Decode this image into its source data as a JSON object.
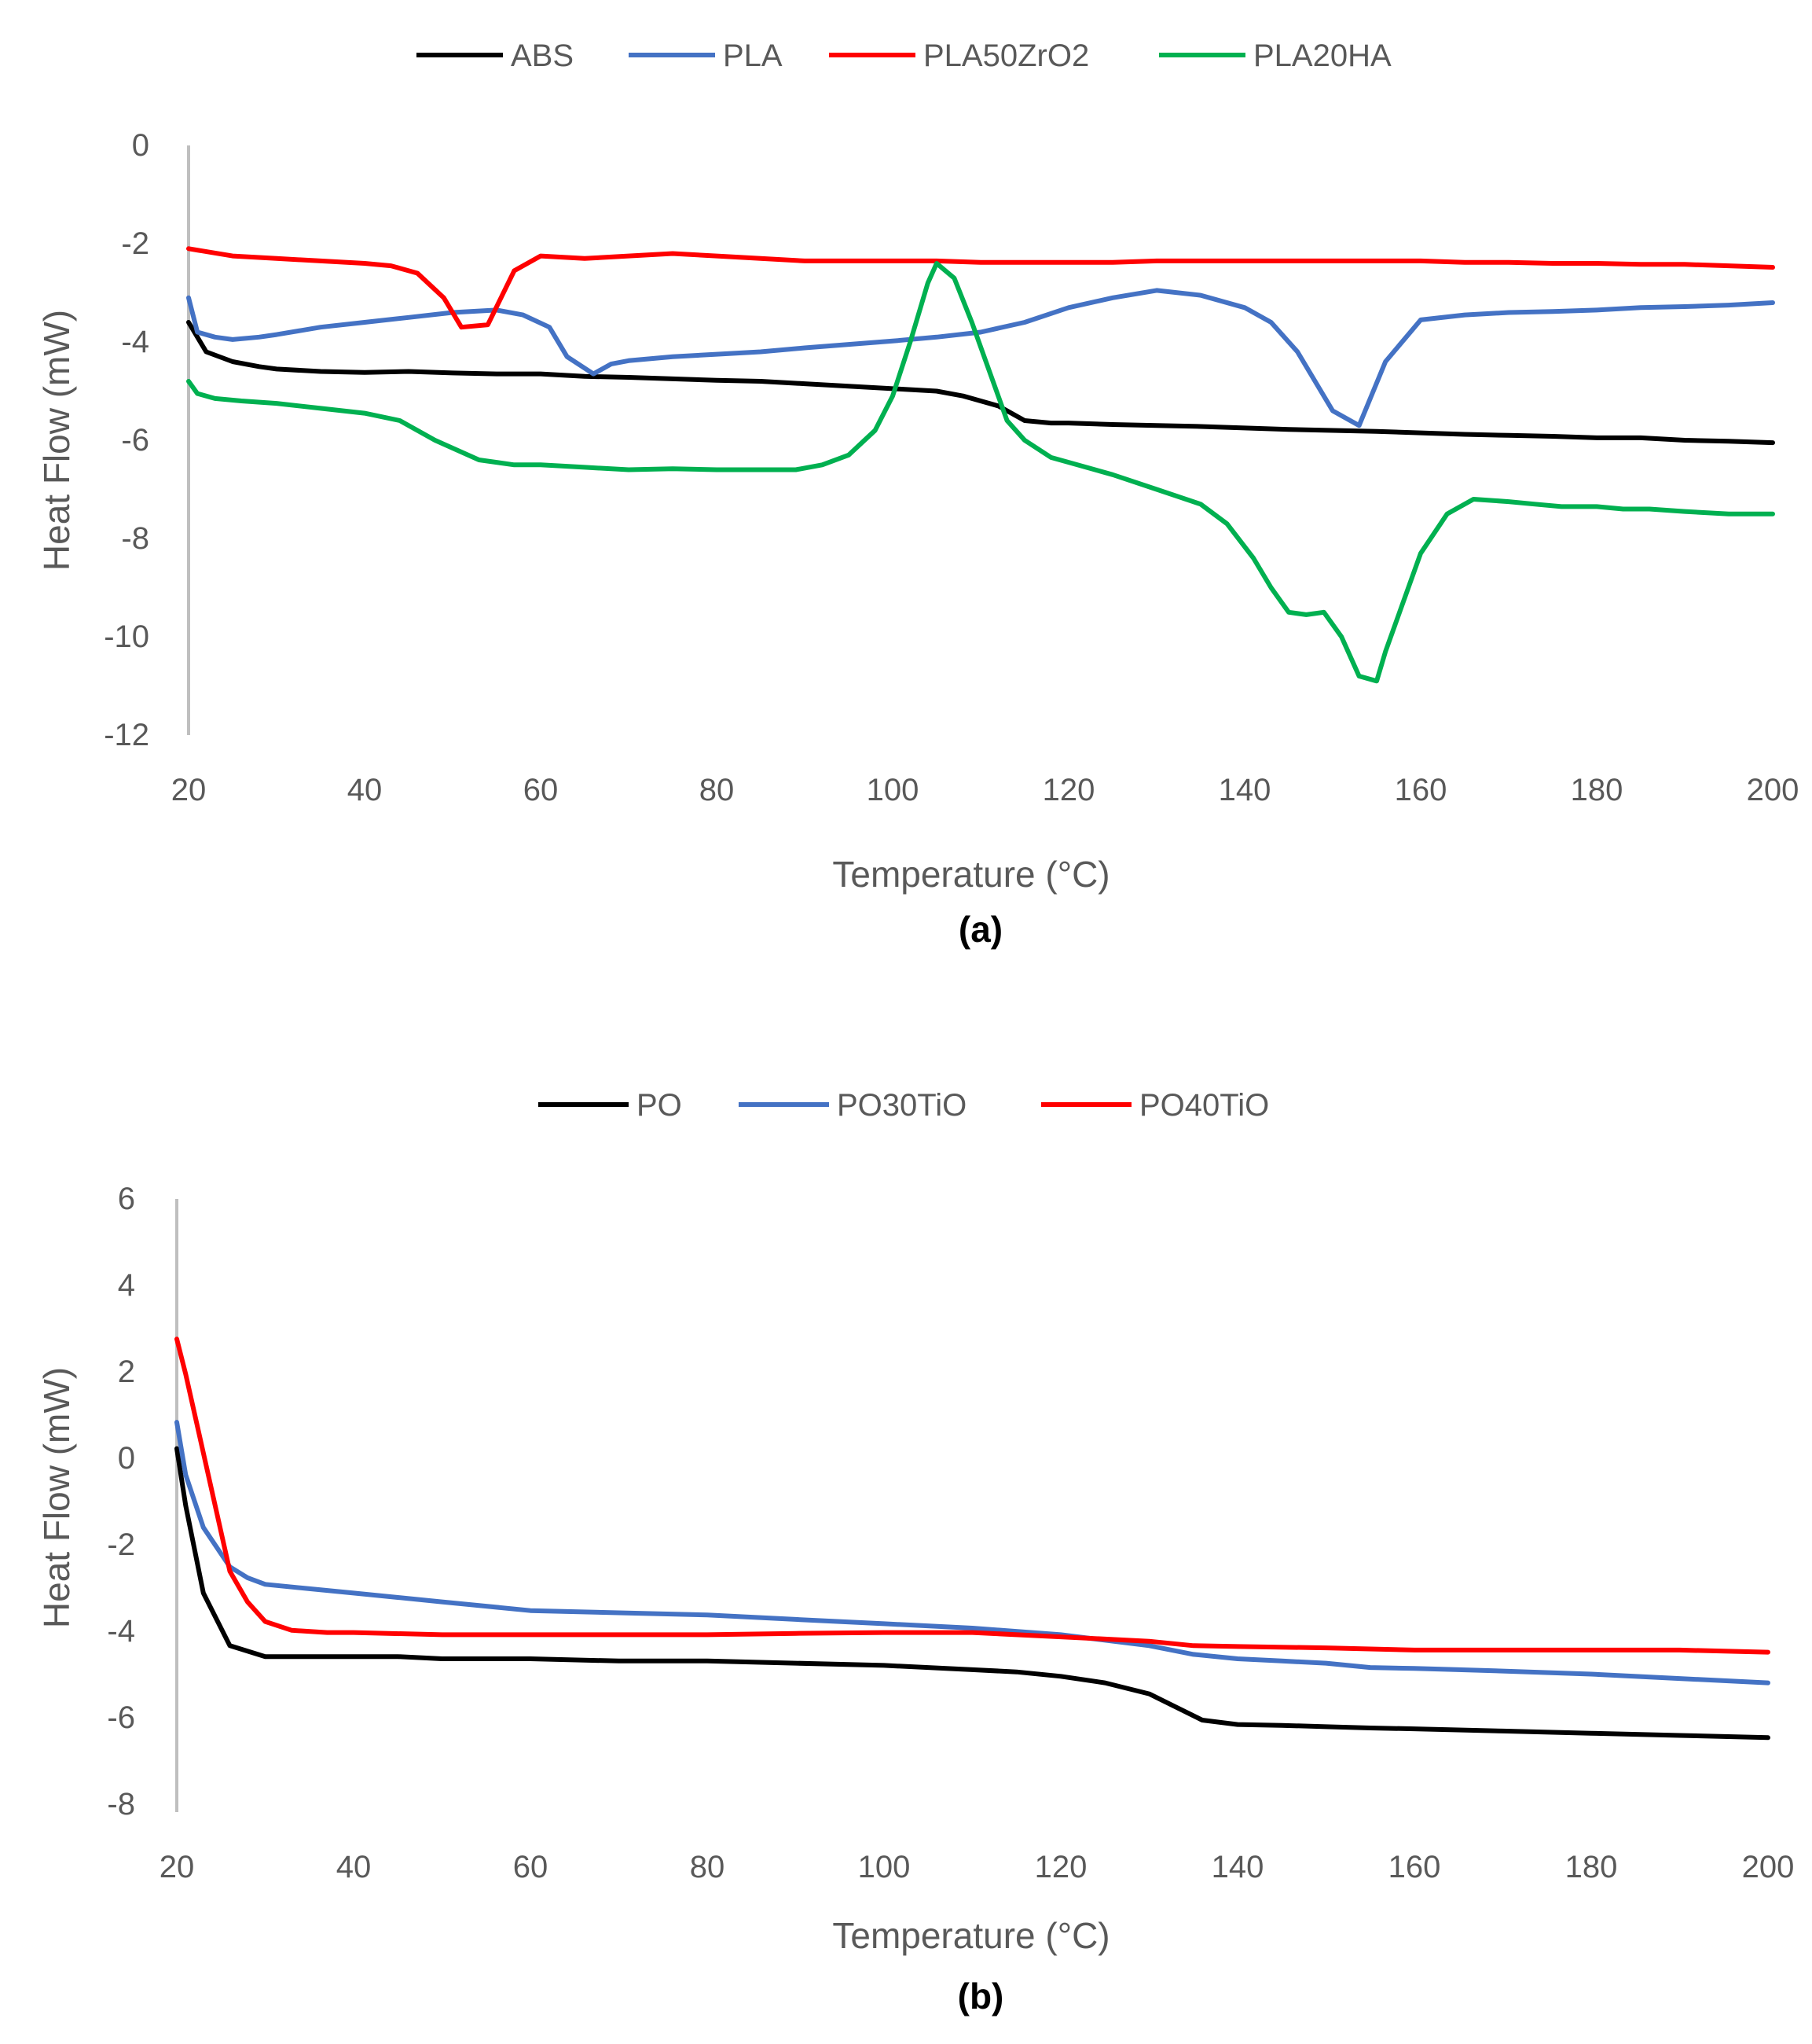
{
  "chart_data": [
    {
      "type": "line",
      "panel_label": "(a)",
      "title": "",
      "xlabel": "Temperature (°C)",
      "ylabel": "Heat Flow (mW)",
      "xlim": [
        20,
        200
      ],
      "ylim": [
        -12,
        0
      ],
      "xticks": [
        20,
        40,
        60,
        80,
        100,
        120,
        140,
        160,
        180,
        200
      ],
      "yticks": [
        0,
        -2,
        -4,
        -6,
        -8,
        -10,
        -12
      ],
      "legend_position": "top-center",
      "grid": false,
      "series": [
        {
          "name": "ABS",
          "color": "#000000",
          "x": [
            20,
            22,
            25,
            28,
            30,
            35,
            40,
            45,
            50,
            55,
            60,
            65,
            70,
            75,
            80,
            85,
            90,
            95,
            100,
            105,
            108,
            112,
            115,
            118,
            120,
            125,
            130,
            135,
            140,
            145,
            150,
            155,
            160,
            165,
            170,
            175,
            180,
            185,
            190,
            195,
            200
          ],
          "y": [
            -3.6,
            -4.2,
            -4.4,
            -4.5,
            -4.55,
            -4.6,
            -4.62,
            -4.6,
            -4.63,
            -4.65,
            -4.65,
            -4.7,
            -4.72,
            -4.75,
            -4.78,
            -4.8,
            -4.85,
            -4.9,
            -4.95,
            -5.0,
            -5.1,
            -5.3,
            -5.6,
            -5.65,
            -5.65,
            -5.68,
            -5.7,
            -5.72,
            -5.75,
            -5.78,
            -5.8,
            -5.82,
            -5.85,
            -5.88,
            -5.9,
            -5.92,
            -5.95,
            -5.95,
            -6.0,
            -6.02,
            -6.05
          ]
        },
        {
          "name": "PLA",
          "color": "#4472C4",
          "x": [
            20,
            21,
            23,
            25,
            28,
            30,
            35,
            40,
            45,
            50,
            55,
            58,
            61,
            63,
            66,
            68,
            70,
            75,
            80,
            85,
            90,
            95,
            100,
            105,
            110,
            115,
            120,
            125,
            130,
            135,
            140,
            143,
            146,
            150,
            153,
            156,
            160,
            165,
            170,
            175,
            180,
            185,
            190,
            195,
            200
          ],
          "y": [
            -3.1,
            -3.8,
            -3.9,
            -3.95,
            -3.9,
            -3.85,
            -3.7,
            -3.6,
            -3.5,
            -3.4,
            -3.35,
            -3.45,
            -3.7,
            -4.3,
            -4.65,
            -4.45,
            -4.38,
            -4.3,
            -4.25,
            -4.2,
            -4.12,
            -4.05,
            -3.98,
            -3.9,
            -3.8,
            -3.6,
            -3.3,
            -3.1,
            -2.95,
            -3.05,
            -3.3,
            -3.6,
            -4.2,
            -5.4,
            -5.7,
            -4.4,
            -3.55,
            -3.45,
            -3.4,
            -3.38,
            -3.35,
            -3.3,
            -3.28,
            -3.25,
            -3.2
          ]
        },
        {
          "name": "PLA50ZrO2",
          "color": "#FF0000",
          "x": [
            20,
            25,
            30,
            35,
            40,
            43,
            46,
            49,
            51,
            54,
            57,
            60,
            65,
            70,
            75,
            80,
            85,
            90,
            95,
            100,
            105,
            110,
            115,
            120,
            125,
            130,
            135,
            140,
            145,
            150,
            155,
            160,
            165,
            170,
            175,
            180,
            185,
            190,
            195,
            200
          ],
          "y": [
            -2.1,
            -2.25,
            -2.3,
            -2.35,
            -2.4,
            -2.45,
            -2.6,
            -3.1,
            -3.7,
            -3.65,
            -2.55,
            -2.25,
            -2.3,
            -2.25,
            -2.2,
            -2.25,
            -2.3,
            -2.35,
            -2.35,
            -2.35,
            -2.35,
            -2.38,
            -2.38,
            -2.38,
            -2.38,
            -2.35,
            -2.35,
            -2.35,
            -2.35,
            -2.35,
            -2.35,
            -2.35,
            -2.38,
            -2.38,
            -2.4,
            -2.4,
            -2.42,
            -2.42,
            -2.45,
            -2.48
          ]
        },
        {
          "name": "PLA20HA",
          "color": "#00B050",
          "x": [
            20,
            21,
            23,
            26,
            30,
            35,
            40,
            44,
            48,
            53,
            57,
            60,
            65,
            70,
            75,
            80,
            85,
            89,
            92,
            95,
            98,
            100,
            102,
            104,
            105,
            106,
            107,
            109,
            111,
            113,
            115,
            118,
            120,
            125,
            130,
            135,
            138,
            141,
            143,
            145,
            147,
            149,
            151,
            153,
            155,
            156,
            158,
            160,
            163,
            166,
            170,
            173,
            176,
            180,
            183,
            186,
            190,
            195,
            200
          ],
          "y": [
            -4.8,
            -5.05,
            -5.15,
            -5.2,
            -5.25,
            -5.35,
            -5.45,
            -5.6,
            -6.0,
            -6.4,
            -6.5,
            -6.5,
            -6.55,
            -6.6,
            -6.58,
            -6.6,
            -6.6,
            -6.6,
            -6.5,
            -6.3,
            -5.8,
            -5.1,
            -4.0,
            -2.8,
            -2.4,
            -2.55,
            -2.7,
            -3.6,
            -4.6,
            -5.6,
            -6.0,
            -6.35,
            -6.45,
            -6.7,
            -7.0,
            -7.3,
            -7.7,
            -8.4,
            -9.0,
            -9.5,
            -9.55,
            -9.5,
            -10.0,
            -10.8,
            -10.9,
            -10.3,
            -9.3,
            -8.3,
            -7.5,
            -7.2,
            -7.25,
            -7.3,
            -7.35,
            -7.35,
            -7.4,
            -7.4,
            -7.45,
            -7.5,
            -7.5
          ]
        }
      ]
    },
    {
      "type": "line",
      "panel_label": "(b)",
      "title": "",
      "xlabel": "Temperature (°C)",
      "ylabel": "Heat Flow (mW)",
      "xlim": [
        20,
        200
      ],
      "ylim": [
        -8,
        6
      ],
      "xticks": [
        20,
        40,
        60,
        80,
        100,
        120,
        140,
        160,
        180,
        200
      ],
      "yticks": [
        6,
        4,
        2,
        0,
        -2,
        -4,
        -6,
        -8
      ],
      "legend_position": "top-center",
      "grid": false,
      "series": [
        {
          "name": "PO",
          "color": "#000000",
          "x": [
            20,
            21,
            23,
            26,
            30,
            35,
            40,
            45,
            50,
            60,
            70,
            80,
            90,
            100,
            110,
            115,
            120,
            125,
            130,
            133,
            136,
            140,
            145,
            150,
            155,
            160,
            170,
            180,
            190,
            200
          ],
          "y": [
            0.3,
            -1.0,
            -3.0,
            -4.2,
            -4.45,
            -4.45,
            -4.45,
            -4.45,
            -4.5,
            -4.5,
            -4.55,
            -4.55,
            -4.6,
            -4.65,
            -4.75,
            -4.8,
            -4.9,
            -5.05,
            -5.3,
            -5.6,
            -5.9,
            -6.0,
            -6.02,
            -6.05,
            -6.08,
            -6.1,
            -6.15,
            -6.2,
            -6.25,
            -6.3
          ]
        },
        {
          "name": "PO30TiO",
          "color": "#4472C4",
          "x": [
            20,
            21,
            23,
            26,
            28,
            30,
            35,
            40,
            45,
            50,
            55,
            60,
            70,
            80,
            90,
            100,
            110,
            120,
            130,
            135,
            140,
            145,
            150,
            155,
            160,
            165,
            170,
            180,
            190,
            200
          ],
          "y": [
            0.9,
            -0.3,
            -1.5,
            -2.4,
            -2.65,
            -2.8,
            -2.9,
            -3.0,
            -3.1,
            -3.2,
            -3.3,
            -3.4,
            -3.45,
            -3.5,
            -3.6,
            -3.7,
            -3.8,
            -3.95,
            -4.2,
            -4.4,
            -4.5,
            -4.55,
            -4.6,
            -4.7,
            -4.72,
            -4.75,
            -4.78,
            -4.85,
            -4.95,
            -5.05
          ]
        },
        {
          "name": "PO40TiO",
          "color": "#FF0000",
          "x": [
            20,
            21,
            23,
            26,
            28,
            30,
            33,
            37,
            40,
            50,
            60,
            70,
            80,
            90,
            100,
            110,
            120,
            130,
            135,
            140,
            150,
            160,
            170,
            180,
            190,
            200
          ],
          "y": [
            2.8,
            2.0,
            0.2,
            -2.5,
            -3.2,
            -3.65,
            -3.85,
            -3.9,
            -3.9,
            -3.95,
            -3.95,
            -3.95,
            -3.95,
            -3.92,
            -3.9,
            -3.9,
            -4.0,
            -4.1,
            -4.2,
            -4.22,
            -4.25,
            -4.3,
            -4.3,
            -4.3,
            -4.3,
            -4.35
          ]
        }
      ]
    }
  ]
}
